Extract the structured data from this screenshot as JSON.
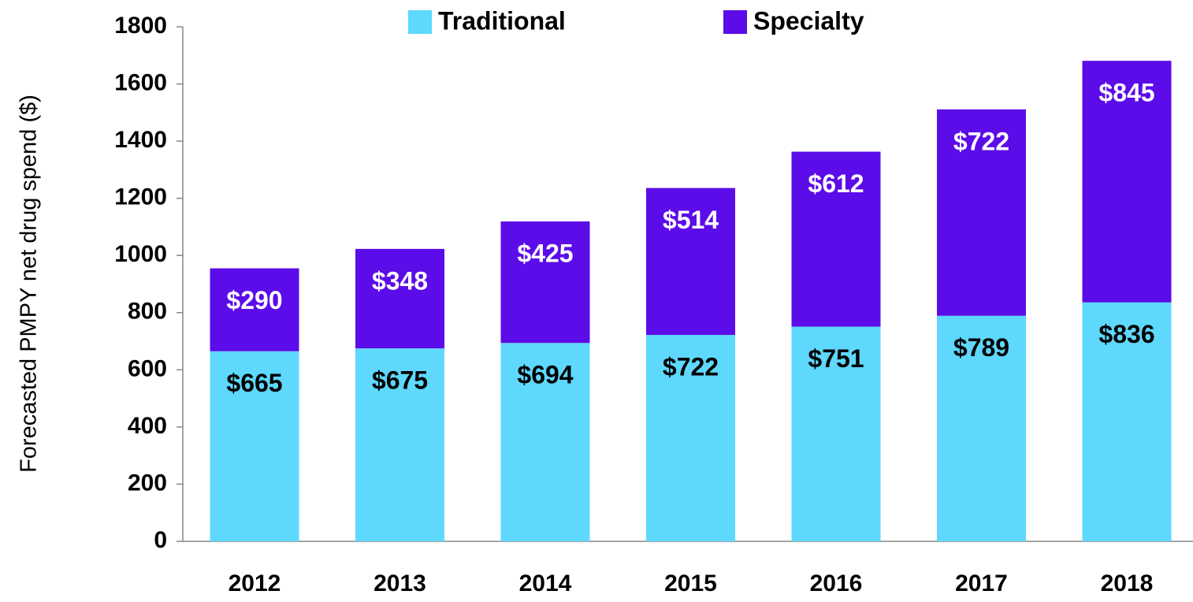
{
  "chart_data": {
    "type": "stacked_bar",
    "y_label": "Forecasted PMPY net drug spend ($)",
    "categories": [
      "2012",
      "2013",
      "2014",
      "2015",
      "2016",
      "2017",
      "2018"
    ],
    "series": [
      {
        "name": "Traditional",
        "color": "#5ed8fc",
        "values": [
          665,
          675,
          694,
          722,
          751,
          789,
          836
        ],
        "value_labels": [
          "$665",
          "$675",
          "$694",
          "$722",
          "$751",
          "$789",
          "$836"
        ]
      },
      {
        "name": "Specialty",
        "color": "#5c0ce8",
        "values": [
          290,
          348,
          425,
          514,
          612,
          722,
          845
        ],
        "value_labels": [
          "$290",
          "$348",
          "$425",
          "$514",
          "$612",
          "$722",
          "$845"
        ]
      }
    ],
    "ylim": [
      0,
      1800
    ],
    "yticks": [
      0,
      200,
      400,
      600,
      800,
      1000,
      1200,
      1400,
      1600,
      1800
    ],
    "legend": "top",
    "grid": false
  }
}
